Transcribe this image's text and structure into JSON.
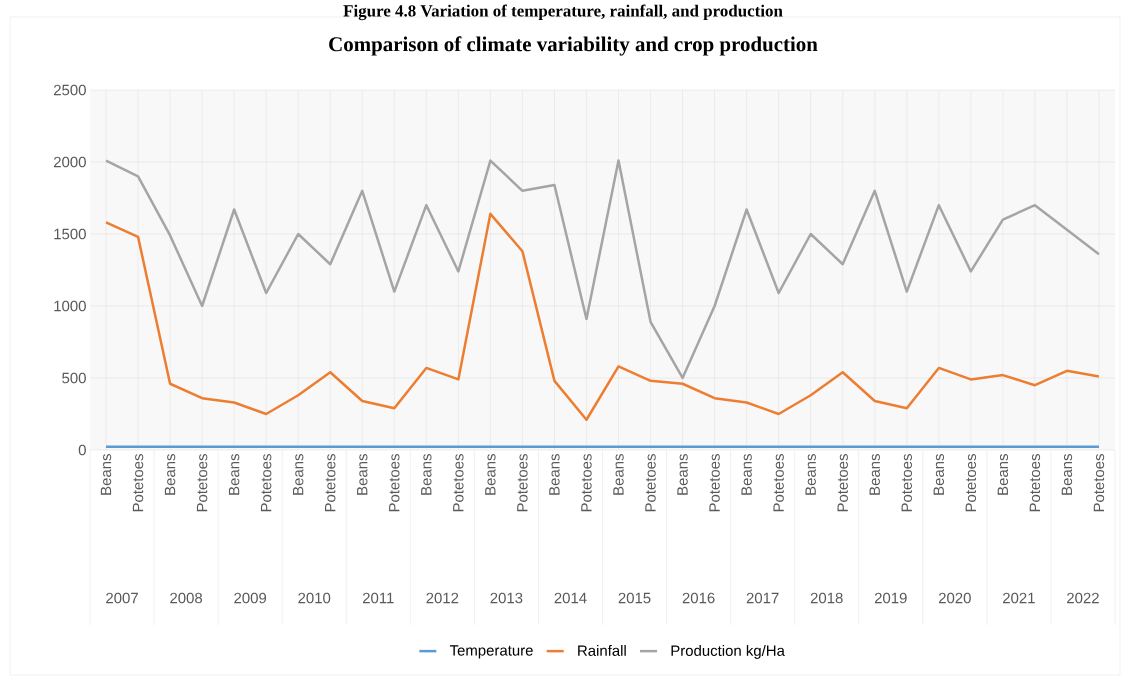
{
  "chart_data": {
    "type": "line",
    "title": "Comparison of climate variability and crop production",
    "annotations": [
      "Figure 4.8 Variation of temperature, rainfall, and production",
      "2007",
      "2008",
      "2009",
      "2010",
      "2011",
      "2012",
      "2013",
      "2014",
      "2015",
      "2016",
      "2017",
      "2018",
      "2019",
      "2020",
      "2021",
      "2022"
    ],
    "categories": [
      "Beans",
      "Potetoes",
      "Beans",
      "Potetoes",
      "Beans",
      "Potetoes",
      "Beans",
      "Potetoes",
      "Beans",
      "Potetoes",
      "Beans",
      "Potetoes",
      "Beans",
      "Potetoes",
      "Beans",
      "Potetoes",
      "Beans",
      "Potetoes",
      "Beans",
      "Potetoes",
      "Beans",
      "Potetoes",
      "Beans",
      "Potetoes",
      "Beans",
      "Potetoes",
      "Beans",
      "Potetoes",
      "Beans",
      "Potetoes",
      "Beans",
      "Potetoes"
    ],
    "series": [
      {
        "name": "Temperature",
        "color": "#5b9bd5",
        "values": [
          22,
          22,
          22,
          22,
          22,
          22,
          22,
          22,
          22,
          22,
          22,
          22,
          22,
          22,
          22,
          22,
          22,
          22,
          22,
          22,
          22,
          22,
          22,
          22,
          22,
          22,
          22,
          22,
          22,
          22,
          22,
          22
        ]
      },
      {
        "name": "Rainfall",
        "color": "#ed7d31",
        "values": [
          1580,
          1480,
          460,
          360,
          330,
          250,
          380,
          540,
          340,
          290,
          570,
          490,
          1640,
          1380,
          480,
          210,
          580,
          480,
          460,
          360,
          330,
          250,
          380,
          540,
          340,
          290,
          570,
          490,
          520,
          450,
          550,
          510
        ]
      },
      {
        "name": "Production kg/Ha",
        "color": "#a5a5a5",
        "values": [
          2010,
          1900,
          1490,
          1000,
          1670,
          1090,
          1500,
          1290,
          1800,
          1100,
          1700,
          1240,
          2010,
          1800,
          1840,
          910,
          2010,
          890,
          500,
          1000,
          1670,
          1090,
          1500,
          1290,
          1800,
          1100,
          1700,
          1240,
          1600,
          1700,
          1530,
          1360
        ]
      }
    ],
    "ylim": [
      0,
      2500
    ],
    "yticks": [
      0,
      500,
      1000,
      1500,
      2000,
      2500
    ],
    "grid": true,
    "legend": "bottom"
  }
}
